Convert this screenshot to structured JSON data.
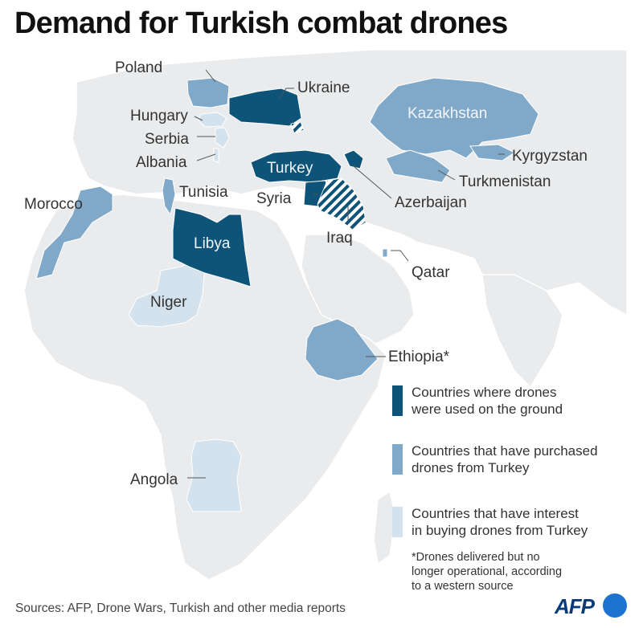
{
  "title": "Demand for Turkish combat drones",
  "colors": {
    "background_land": "#e9ebed",
    "water": "#ffffff",
    "used_on_ground": "#0e5478",
    "purchased": "#7fa8c9",
    "interest": "#d3e2ec"
  },
  "countries": {
    "turkey": "Turkey",
    "libya": "Libya",
    "kazakhstan": "Kazakhstan",
    "niger": "Niger",
    "poland": "Poland",
    "ukraine": "Ukraine",
    "hungary": "Hungary",
    "serbia": "Serbia",
    "albania": "Albania",
    "tunisia": "Tunisia",
    "morocco": "Morocco",
    "syria": "Syria",
    "iraq": "Iraq",
    "qatar": "Qatar",
    "azerbaijan": "Azerbaijan",
    "kyrgyzstan": "Kyrgyzstan",
    "turkmenistan": "Turkmenistan",
    "ethiopia": "Ethiopia*",
    "angola": "Angola"
  },
  "legend": [
    {
      "label": "Countries where drones\nwere used on the ground",
      "color": "#0e5478"
    },
    {
      "label": "Countries that have purchased\ndrones from Turkey",
      "color": "#7fa8c9"
    },
    {
      "label": "Countries that have interest\nin buying drones from Turkey",
      "color": "#d3e2ec"
    }
  ],
  "footnote": "*Drones delivered but no\nlonger operational, according\nto a western source",
  "sources": "Sources: AFP, Drone Wars, Turkish and other media reports",
  "logo": {
    "text": "AFP",
    "icon": "afp-logo-dot"
  }
}
